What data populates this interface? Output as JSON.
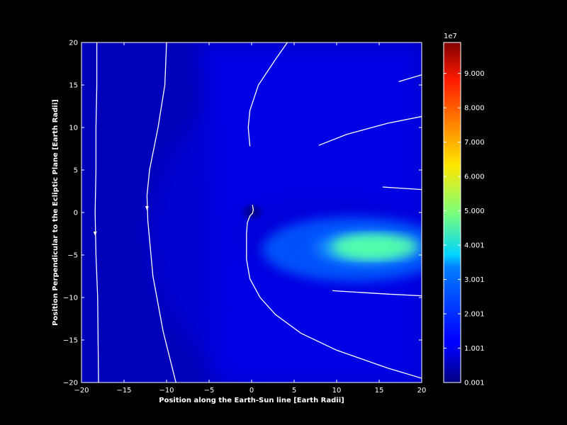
{
  "chart_data": {
    "type": "heatmap",
    "title": "",
    "xlabel": "Position along the Earth-Sun line [Earth Radii]",
    "ylabel": "Position Perpendicular to the Ecliptic Plane [Earth Radii]",
    "xlim": [
      -20,
      20
    ],
    "ylim": [
      -20,
      20
    ],
    "x_ticks": [
      "−20",
      "−15",
      "−10",
      "−5",
      "0",
      "5",
      "10",
      "15",
      "20"
    ],
    "y_ticks": [
      "−20",
      "−15",
      "−10",
      "−5",
      "0",
      "5",
      "10",
      "15",
      "20"
    ],
    "x_tick_values": [
      -20,
      -15,
      -10,
      -5,
      0,
      5,
      10,
      15,
      20
    ],
    "y_tick_values": [
      -20,
      -15,
      -10,
      -5,
      0,
      5,
      10,
      15,
      20
    ],
    "colormap": "jet",
    "colorbar": {
      "multiplier": "1e7",
      "range": [
        0.001,
        9.9
      ],
      "tick_values": [
        0.001,
        1.001,
        2.001,
        3.001,
        4.001,
        5.0,
        6.0,
        7.0,
        8.0,
        9.0
      ],
      "tick_labels": [
        "0.001",
        "1.001",
        "2.001",
        "3.001",
        "4.001",
        "5.000",
        "6.000",
        "7.000",
        "8.000",
        "9.000"
      ]
    },
    "field_lines": [
      {
        "x": [
          -18.2,
          -18.2,
          -18.3,
          -18.3,
          -18.4,
          -18.3,
          -18.1,
          -18.0
        ],
        "y": [
          20,
          15,
          10,
          5,
          0,
          -5,
          -10,
          -20
        ],
        "arrow_at": [
          -18.4,
          -2.5
        ]
      },
      {
        "x": [
          -10.0,
          -10.2,
          -11.0,
          -12.0,
          -12.3,
          -12.2,
          -11.6,
          -10.4,
          -8.9
        ],
        "y": [
          20,
          15,
          10,
          5,
          2,
          -1,
          -7.5,
          -14,
          -20
        ],
        "arrow_at": [
          -12.3,
          0.5
        ]
      },
      {
        "x": [
          4.2,
          2.8,
          0.8,
          -0.2,
          -0.4,
          -0.2
        ],
        "y": [
          20,
          18,
          15,
          12,
          10,
          7.8
        ]
      },
      {
        "x": [
          0.1,
          0.2,
          0.1,
          -0.2,
          -0.5,
          -0.6,
          -0.6,
          -0.2,
          1.0,
          2.8,
          5.8,
          10.0,
          16.0,
          20.0
        ],
        "y": [
          0.9,
          0.3,
          -0.1,
          -0.4,
          -1.2,
          -2.5,
          -5.5,
          -7.8,
          -10.0,
          -12.0,
          -14.2,
          -16.2,
          -18.3,
          -19.5
        ]
      },
      {
        "x": [
          17.3,
          20.0
        ],
        "y": [
          15.4,
          16.2
        ]
      },
      {
        "x": [
          7.9,
          11.2,
          16.0,
          20.0
        ],
        "y": [
          7.9,
          9.2,
          10.5,
          11.3
        ]
      },
      {
        "x": [
          15.4,
          20.0
        ],
        "y": [
          3.0,
          2.7
        ]
      },
      {
        "x": [
          9.5,
          16.0,
          20.0
        ],
        "y": [
          -9.2,
          -9.6,
          -9.8
        ]
      }
    ],
    "intensity_features": [
      {
        "kind": "magnetotail",
        "x_range": [
          2,
          20
        ],
        "y_center": -4.2,
        "peak_value": 4.2
      },
      {
        "kind": "background",
        "value": 0.6
      }
    ]
  }
}
